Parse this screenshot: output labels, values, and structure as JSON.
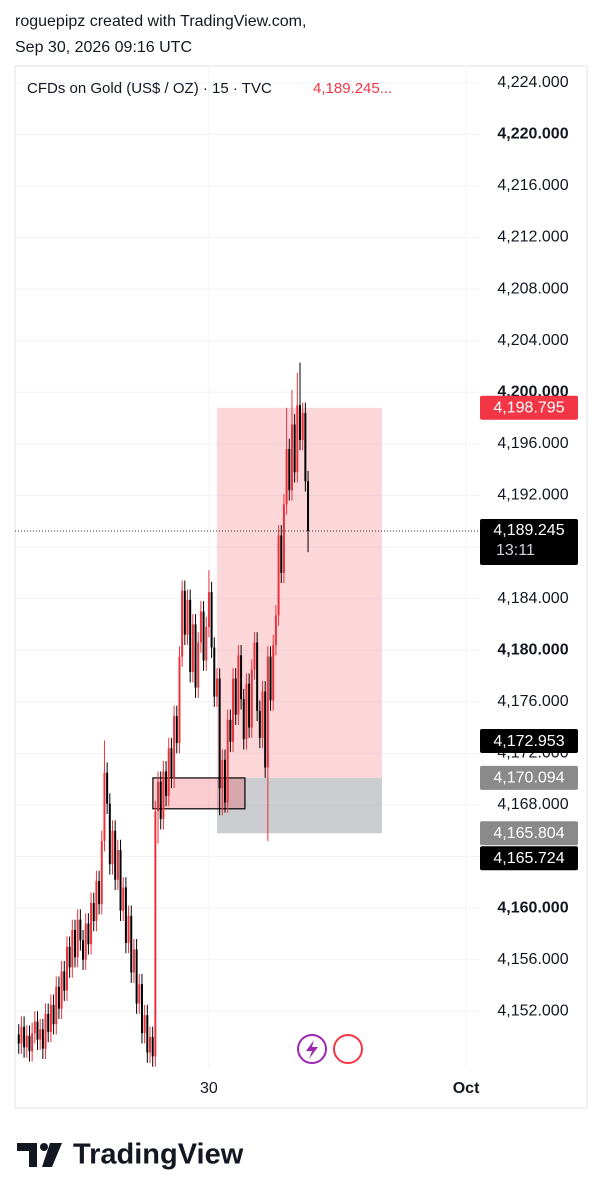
{
  "header": {
    "line1": "roguepipz created with TradingView.com,",
    "line2": "Sep 30, 2026 09:16 UTC"
  },
  "chart_data": {
    "type": "candlestick",
    "title": "CFDs on Gold (US$ / OZ) · 15 · TVC",
    "last_price_text": "4,189.245...",
    "title_price_color": "#f23645",
    "up_color": "#e8323c",
    "down_color": "#000000",
    "grid": true,
    "xlim": [
      -18.1,
      25.3
    ],
    "xticks": [
      {
        "value": 0,
        "label": "30"
      },
      {
        "value": 24,
        "label": "Oct"
      }
    ],
    "ylim": [
      4147.6,
      4225.3
    ],
    "yticks": [
      {
        "value": 4152,
        "label": "4,152.000"
      },
      {
        "value": 4156,
        "label": "4,156.000"
      },
      {
        "value": 4160,
        "label": "4,160.000"
      },
      {
        "value": 4164,
        "label": "4,164.000"
      },
      {
        "value": 4168,
        "label": "4,168.000"
      },
      {
        "value": 4172,
        "label": "4,172.000"
      },
      {
        "value": 4176,
        "label": "4,176.000"
      },
      {
        "value": 4180,
        "label": "4,180.000"
      },
      {
        "value": 4184,
        "label": "4,184.000"
      },
      {
        "value": 4188,
        "label": "4,188.000"
      },
      {
        "value": 4192,
        "label": "4,192.000"
      },
      {
        "value": 4196,
        "label": "4,196.000"
      },
      {
        "value": 4200,
        "label": "4,200.000"
      },
      {
        "value": 4204,
        "label": "4,204.000"
      },
      {
        "value": 4208,
        "label": "4,208.000"
      },
      {
        "value": 4212,
        "label": "4,212.000"
      },
      {
        "value": 4216,
        "label": "4,216.000"
      },
      {
        "value": 4220,
        "label": "4,220.000"
      },
      {
        "value": 4224,
        "label": "4,224.000"
      }
    ],
    "x": [
      -17.75,
      -17.5,
      -17.25,
      -17,
      -16.75,
      -16.5,
      -16.25,
      -16,
      -15.75,
      -15.5,
      -15.25,
      -15,
      -14.75,
      -14.5,
      -14.25,
      -14,
      -13.75,
      -13.5,
      -13.25,
      -13,
      -12.75,
      -12.5,
      -12.25,
      -12,
      -11.75,
      -11.5,
      -11.25,
      -11,
      -10.75,
      -10.5,
      -10.25,
      -10,
      -9.75,
      -9.5,
      -9.25,
      -9,
      -8.75,
      -8.5,
      -8.25,
      -8,
      -7.75,
      -7.5,
      -7.25,
      -7,
      -6.75,
      -6.5,
      -6.25,
      -6,
      -5.75,
      -5.5,
      -5.25,
      -5,
      -4.75,
      -4.5,
      -4.25,
      -4,
      -3.75,
      -3.5,
      -3.25,
      -3,
      -2.75,
      -2.5,
      -2.25,
      -2,
      -1.75,
      -1.5,
      -1.25,
      -1,
      -0.75,
      -0.5,
      -0.25,
      0,
      0.25,
      0.5,
      0.75,
      1,
      1.25,
      1.5,
      1.75,
      2,
      2.25,
      2.5,
      2.75,
      3,
      3.25,
      3.5,
      3.75,
      4,
      4.25,
      4.5,
      4.75,
      5,
      5.25,
      5.5,
      5.75,
      6,
      6.25,
      6.5,
      6.75,
      7,
      7.25,
      7.5,
      7.75,
      8,
      8.25,
      8.5,
      8.75,
      9,
      9.25
    ],
    "open": [
      4150.2,
      4149.5,
      4150.8,
      4149.2,
      4150.1,
      4148.9,
      4150.3,
      4151.2,
      4149.8,
      4150.6,
      4149.1,
      4151.8,
      4150.4,
      4152.5,
      4151.0,
      4153.9,
      4152.2,
      4155.1,
      4153.6,
      4157.0,
      4155.4,
      4158.3,
      4156.2,
      4159.1,
      4157.5,
      4156.0,
      4158.8,
      4157.2,
      4160.4,
      4159.0,
      4162.1,
      4160.3,
      4165.2,
      4170.5,
      4168.1,
      4163.4,
      4166.0,
      4162.2,
      4164.5,
      4159.8,
      4161.6,
      4157.3,
      4159.4,
      4155.0,
      4156.8,
      4152.6,
      4154.1,
      4150.3,
      4151.7,
      4148.8,
      4150.0,
      4148.5,
      4167.5,
      4169.8,
      4166.9,
      4170.6,
      4168.7,
      4172.4,
      4170.1,
      4174.9,
      4172.8,
      4179.5,
      4184.6,
      4181.2,
      4183.9,
      4178.3,
      4182.0,
      4177.1,
      4180.6,
      4183.0,
      4179.2,
      4181.8,
      4184.5,
      4180.2,
      4176.4,
      4177.8,
      4169.3,
      4171.5,
      4168.2,
      4174.6,
      4172.9,
      4177.8,
      4175.0,
      4179.6,
      4176.2,
      4173.1,
      4177.4,
      4174.0,
      4178.5,
      4180.6,
      4175.3,
      4173.2,
      4176.8,
      4170.9,
      4179.5,
      4176.1,
      4180.4,
      4182.7,
      4188.9,
      4186.0,
      4191.3,
      4195.6,
      4192.4,
      4197.5,
      4193.8,
      4199.0,
      4196.3,
      4198.4,
      4193.1
    ],
    "high": [
      4151.0,
      4151.6,
      4151.6,
      4150.9,
      4150.9,
      4151.1,
      4152.0,
      4152.0,
      4151.4,
      4151.4,
      4152.6,
      4152.6,
      4153.3,
      4153.3,
      4154.7,
      4154.7,
      4155.9,
      4155.9,
      4157.8,
      4157.8,
      4159.1,
      4159.1,
      4159.9,
      4159.9,
      4158.3,
      4159.6,
      4159.6,
      4161.2,
      4161.2,
      4162.9,
      4162.9,
      4166.0,
      4173.0,
      4171.3,
      4168.9,
      4166.8,
      4166.8,
      4165.3,
      4165.3,
      4162.4,
      4162.4,
      4160.2,
      4160.2,
      4157.6,
      4157.6,
      4154.9,
      4154.9,
      4152.5,
      4152.5,
      4150.8,
      4150.8,
      4168.3,
      4170.6,
      4170.6,
      4171.4,
      4171.4,
      4173.2,
      4173.2,
      4175.7,
      4175.7,
      4180.3,
      4185.4,
      4185.4,
      4184.7,
      4184.7,
      4182.8,
      4182.8,
      4181.4,
      4183.8,
      4183.8,
      4182.6,
      4186.2,
      4185.3,
      4181.0,
      4178.6,
      4178.6,
      4172.3,
      4172.3,
      4175.4,
      4175.4,
      4178.6,
      4178.6,
      4180.4,
      4180.4,
      4177.0,
      4178.2,
      4178.2,
      4179.3,
      4181.4,
      4181.4,
      4176.1,
      4177.6,
      4177.6,
      4180.3,
      4180.3,
      4181.2,
      4183.5,
      4189.7,
      4189.7,
      4192.1,
      4198.8,
      4196.4,
      4200.2,
      4198.3,
      4201.5,
      4202.3,
      4199.2,
      4199.2,
      4193.9
    ],
    "low": [
      4148.7,
      4148.7,
      4148.4,
      4148.4,
      4148.1,
      4148.1,
      4149.5,
      4149.0,
      4149.0,
      4148.3,
      4148.3,
      4149.6,
      4149.6,
      4150.2,
      4150.2,
      4151.4,
      4151.4,
      4152.8,
      4152.8,
      4154.6,
      4154.6,
      4155.4,
      4155.4,
      4156.7,
      4155.2,
      4155.2,
      4156.4,
      4156.4,
      4158.2,
      4158.2,
      4159.5,
      4159.5,
      4164.4,
      4167.3,
      4162.6,
      4162.6,
      4161.4,
      4161.4,
      4159.0,
      4159.0,
      4156.5,
      4156.5,
      4154.2,
      4154.2,
      4151.8,
      4151.8,
      4149.5,
      4149.5,
      4148.0,
      4148.0,
      4147.7,
      4147.7,
      4165.0,
      4166.1,
      4166.1,
      4167.9,
      4167.9,
      4169.3,
      4169.3,
      4172.0,
      4172.0,
      4178.7,
      4180.4,
      4180.4,
      4177.5,
      4177.5,
      4176.3,
      4176.3,
      4179.8,
      4178.4,
      4178.4,
      4181.0,
      4179.4,
      4175.6,
      4175.6,
      4167.2,
      4167.2,
      4167.4,
      4167.4,
      4172.1,
      4172.1,
      4174.2,
      4174.2,
      4175.4,
      4172.3,
      4172.3,
      4173.2,
      4173.2,
      4177.7,
      4174.5,
      4172.4,
      4172.4,
      4170.1,
      4165.2,
      4175.3,
      4175.3,
      4179.6,
      4181.9,
      4185.2,
      4185.2,
      4190.5,
      4191.6,
      4191.6,
      4193.0,
      4193.0,
      4195.5,
      4195.5,
      4192.3,
      4187.6
    ],
    "close": [
      4149.5,
      4150.8,
      4149.2,
      4150.1,
      4148.9,
      4150.3,
      4151.2,
      4149.8,
      4150.6,
      4149.1,
      4151.8,
      4150.4,
      4152.5,
      4151.0,
      4153.9,
      4152.2,
      4155.1,
      4153.6,
      4157.0,
      4155.4,
      4158.3,
      4156.2,
      4159.1,
      4157.5,
      4156.0,
      4158.8,
      4157.2,
      4160.4,
      4159.0,
      4162.1,
      4160.3,
      4165.2,
      4170.5,
      4168.1,
      4163.4,
      4166.0,
      4162.2,
      4164.5,
      4159.8,
      4161.6,
      4157.3,
      4159.4,
      4155.0,
      4156.8,
      4152.6,
      4154.1,
      4150.3,
      4151.7,
      4148.8,
      4150.0,
      4148.5,
      4167.5,
      4169.8,
      4166.9,
      4170.6,
      4168.7,
      4172.4,
      4170.1,
      4174.9,
      4172.8,
      4179.5,
      4184.6,
      4181.2,
      4183.9,
      4178.3,
      4182.0,
      4177.1,
      4180.6,
      4183.0,
      4179.2,
      4181.8,
      4184.5,
      4180.2,
      4176.4,
      4177.8,
      4169.3,
      4171.5,
      4168.2,
      4174.6,
      4172.9,
      4177.8,
      4175.0,
      4179.6,
      4176.2,
      4173.1,
      4177.4,
      4174.0,
      4178.5,
      4180.6,
      4175.3,
      4173.2,
      4176.8,
      4170.9,
      4179.5,
      4176.1,
      4180.4,
      4182.7,
      4188.9,
      4186.0,
      4191.3,
      4195.6,
      4192.4,
      4197.5,
      4193.8,
      4199.0,
      4196.3,
      4198.4,
      4193.1,
      4189.245
    ],
    "zones": [
      {
        "x": [
          0.75,
          16.15
        ],
        "from": 4170.094,
        "to": 4198.795,
        "color": "rgba(242,54,69,0.2)"
      },
      {
        "x": [
          0.75,
          16.15
        ],
        "from": 4165.804,
        "to": 4170.094,
        "color": "rgba(120,123,134,0.38)"
      },
      {
        "x": [
          -5.23,
          3.36
        ],
        "from": 4167.7,
        "to": 4170.094,
        "color": "rgba(242,54,69,0.25)",
        "outline": "#000000"
      }
    ],
    "last_price": {
      "value": 4189.245,
      "label": "4,189.245",
      "countdown": "13:11",
      "color": "#000000"
    },
    "price_labels": [
      {
        "value": 4198.795,
        "label": "4,198.795",
        "color": "#f23645"
      },
      {
        "value": 4172.953,
        "label": "4,172.953",
        "color": "#000000"
      },
      {
        "value": 4170.094,
        "label": "4,170.094",
        "color": "#8a8a8a"
      },
      {
        "value": 4165.804,
        "label": "4,165.804",
        "color": "#8a8a8a"
      },
      {
        "value": 4165.724,
        "label": "4,165.724",
        "color": "#000000"
      }
    ]
  },
  "footer": {
    "brand": "TradingView"
  }
}
